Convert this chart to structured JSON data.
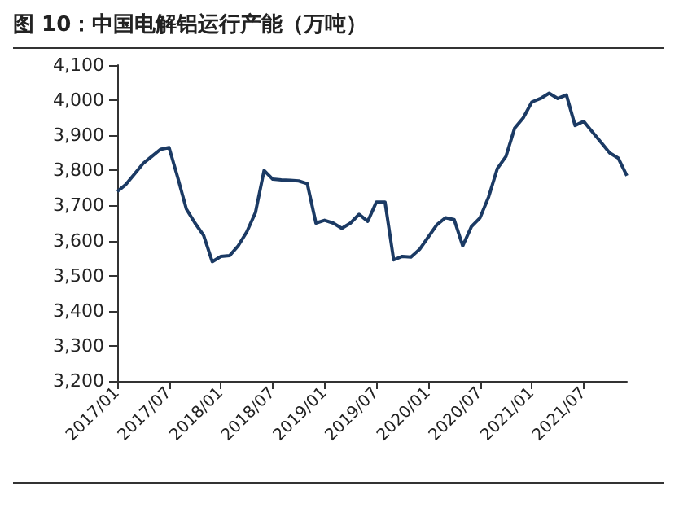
{
  "chart_data": {
    "type": "line",
    "title": "图 10：中国电解铝运行产能（万吨）",
    "categories": [
      "2017/01",
      null,
      null,
      null,
      null,
      null,
      "2017/07",
      null,
      null,
      null,
      null,
      null,
      "2018/01",
      null,
      null,
      null,
      null,
      null,
      "2018/07",
      null,
      null,
      null,
      null,
      null,
      "2019/01",
      null,
      null,
      null,
      null,
      null,
      "2019/07",
      null,
      null,
      null,
      null,
      null,
      "2020/01",
      null,
      null,
      null,
      null,
      null,
      "2020/07",
      null,
      null,
      null,
      null,
      null,
      "2021/01",
      null,
      null,
      null,
      null,
      null,
      "2021/07",
      null,
      null,
      null,
      null,
      null
    ],
    "series": [
      {
        "color": "#1b3a64",
        "values": [
          3740,
          3760,
          3790,
          3820,
          3840,
          3860,
          3865,
          3780,
          3690,
          3650,
          3615,
          3540,
          3555,
          3557,
          3585,
          3625,
          3680,
          3800,
          3775,
          3773,
          3772,
          3770,
          3762,
          3650,
          3658,
          3650,
          3635,
          3650,
          3675,
          3655,
          3710,
          3710,
          3545,
          3555,
          3553,
          3575,
          3610,
          3645,
          3665,
          3660,
          3585,
          3640,
          3665,
          3725,
          3805,
          3840,
          3920,
          3950,
          3995,
          4005,
          4020,
          4005,
          4015,
          3928,
          3940,
          3910,
          3880,
          3850,
          3835,
          3785
        ]
      }
    ],
    "ylim": [
      3200,
      4100
    ],
    "yticks": [
      {
        "value": 3200,
        "label": "3,200"
      },
      {
        "value": 3300,
        "label": "3,300"
      },
      {
        "value": 3400,
        "label": "3,400"
      },
      {
        "value": 3500,
        "label": "3,500"
      },
      {
        "value": 3600,
        "label": "3,600"
      },
      {
        "value": 3700,
        "label": "3,700"
      },
      {
        "value": 3800,
        "label": "3,800"
      },
      {
        "value": 3900,
        "label": "3,900"
      },
      {
        "value": 4000,
        "label": "4,000"
      },
      {
        "value": 4100,
        "label": "4,100"
      }
    ],
    "grid": false,
    "marker": "none",
    "line_style": "solid"
  }
}
